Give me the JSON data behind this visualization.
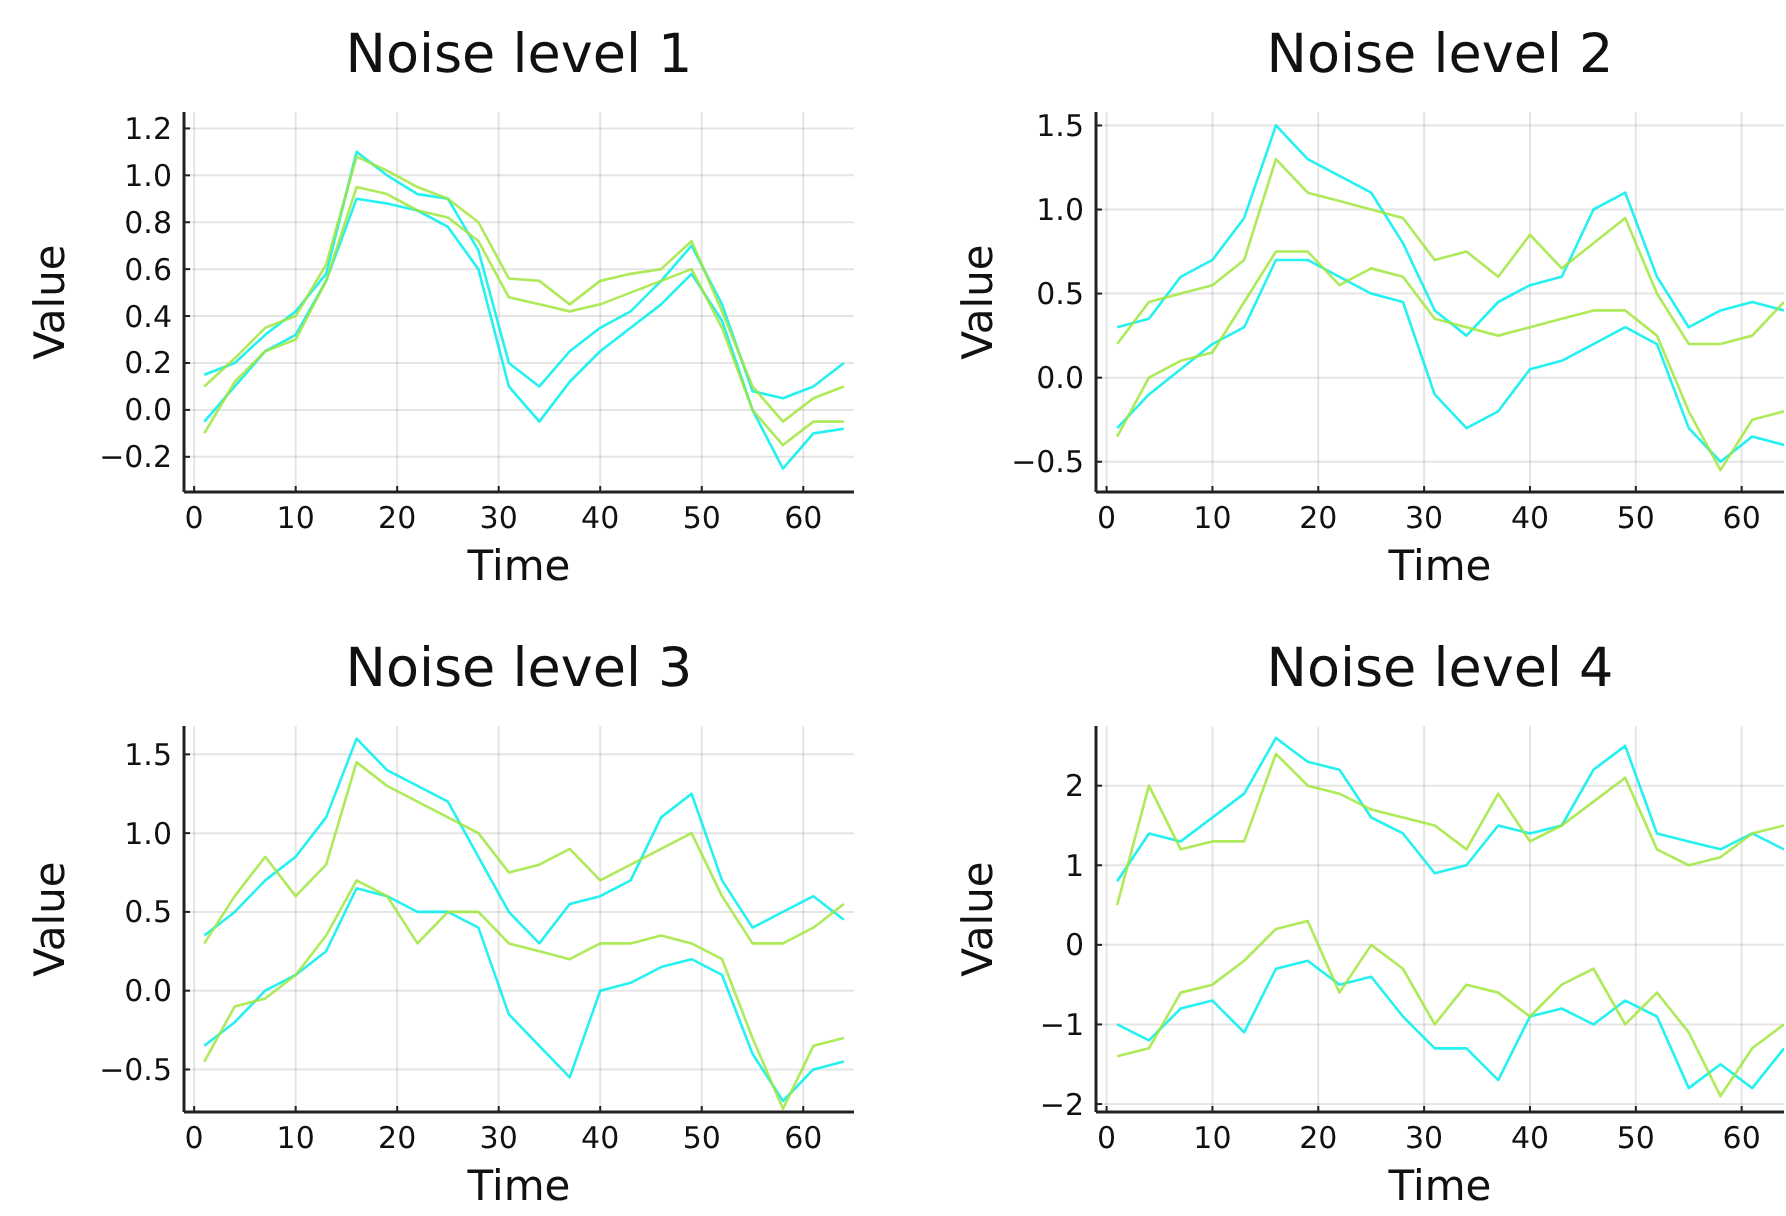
{
  "chart_data": [
    {
      "type": "line",
      "title": "Noise level 1",
      "xlabel": "Time",
      "ylabel": "Value",
      "x": [
        1,
        4,
        7,
        10,
        13,
        16,
        19,
        22,
        25,
        28,
        31,
        34,
        37,
        40,
        43,
        46,
        49,
        52,
        55,
        58,
        61,
        64
      ],
      "xlim": [
        -1,
        65
      ],
      "xticks": [
        0,
        10,
        20,
        30,
        40,
        50,
        60
      ],
      "ylim": [
        -0.35,
        1.27
      ],
      "yticks": [
        {
          "value": -0.2,
          "label": "−0.2"
        },
        {
          "value": 0,
          "label": "0.0"
        },
        0.2,
        0.4,
        0.6,
        0.8,
        {
          "value": 1,
          "label": "1.0"
        },
        1.2
      ],
      "grid": true,
      "series": [
        {
          "color": "#00eeee",
          "values": [
            0.15,
            0.2,
            0.32,
            0.42,
            0.58,
            1.1,
            1.0,
            0.92,
            0.9,
            0.68,
            0.2,
            0.1,
            0.25,
            0.35,
            0.42,
            0.55,
            0.7,
            0.45,
            0.08,
            0.05,
            0.1,
            0.2
          ]
        },
        {
          "color": "#00eeee",
          "values": [
            -0.05,
            0.1,
            0.25,
            0.32,
            0.55,
            0.9,
            0.88,
            0.85,
            0.78,
            0.6,
            0.1,
            -0.05,
            0.12,
            0.25,
            0.35,
            0.45,
            0.58,
            0.38,
            0.0,
            -0.25,
            -0.1,
            -0.08
          ]
        },
        {
          "color": "#a0e63c",
          "values": [
            0.1,
            0.22,
            0.35,
            0.4,
            0.62,
            1.08,
            1.02,
            0.95,
            0.9,
            0.8,
            0.56,
            0.55,
            0.45,
            0.55,
            0.58,
            0.6,
            0.72,
            0.42,
            0.1,
            -0.05,
            0.05,
            0.1
          ]
        },
        {
          "color": "#a0e63c",
          "values": [
            -0.1,
            0.12,
            0.25,
            0.3,
            0.55,
            0.95,
            0.92,
            0.85,
            0.82,
            0.72,
            0.48,
            0.45,
            0.42,
            0.45,
            0.5,
            0.55,
            0.6,
            0.35,
            0.0,
            -0.15,
            -0.05,
            -0.05
          ]
        }
      ]
    },
    {
      "type": "line",
      "title": "Noise level 2",
      "xlabel": "Time",
      "ylabel": "Value",
      "x": [
        1,
        4,
        7,
        10,
        13,
        16,
        19,
        22,
        25,
        28,
        31,
        34,
        37,
        40,
        43,
        46,
        49,
        52,
        55,
        58,
        61,
        64
      ],
      "xlim": [
        -1,
        64
      ],
      "xticks": [
        0,
        10,
        20,
        30,
        40,
        50,
        60
      ],
      "ylim": [
        -0.68,
        1.58
      ],
      "yticks": [
        {
          "value": -0.5,
          "label": "−0.5"
        },
        {
          "value": 0,
          "label": "0.0"
        },
        0.5,
        {
          "value": 1,
          "label": "1.0"
        },
        1.5
      ],
      "grid": true,
      "series": [
        {
          "color": "#00eeee",
          "values": [
            0.3,
            0.35,
            0.6,
            0.7,
            0.95,
            1.5,
            1.3,
            1.2,
            1.1,
            0.8,
            0.4,
            0.25,
            0.45,
            0.55,
            0.6,
            1.0,
            1.1,
            0.6,
            0.3,
            0.4,
            0.45,
            0.4
          ]
        },
        {
          "color": "#00eeee",
          "values": [
            -0.3,
            -0.1,
            0.05,
            0.2,
            0.3,
            0.7,
            0.7,
            0.6,
            0.5,
            0.45,
            -0.1,
            -0.3,
            -0.2,
            0.05,
            0.1,
            0.2,
            0.3,
            0.2,
            -0.3,
            -0.5,
            -0.35,
            -0.4
          ]
        },
        {
          "color": "#a0e63c",
          "values": [
            0.2,
            0.45,
            0.5,
            0.55,
            0.7,
            1.3,
            1.1,
            1.05,
            1.0,
            0.95,
            0.7,
            0.75,
            0.6,
            0.85,
            0.65,
            0.8,
            0.95,
            0.5,
            0.2,
            0.2,
            0.25,
            0.45
          ]
        },
        {
          "color": "#a0e63c",
          "values": [
            -0.35,
            0.0,
            0.1,
            0.15,
            0.45,
            0.75,
            0.75,
            0.55,
            0.65,
            0.6,
            0.35,
            0.3,
            0.25,
            0.3,
            0.35,
            0.4,
            0.4,
            0.25,
            -0.2,
            -0.55,
            -0.25,
            -0.2
          ]
        }
      ]
    },
    {
      "type": "line",
      "title": "Noise level 3",
      "xlabel": "Time",
      "ylabel": "Value",
      "x": [
        1,
        4,
        7,
        10,
        13,
        16,
        19,
        22,
        25,
        28,
        31,
        34,
        37,
        40,
        43,
        46,
        49,
        52,
        55,
        58,
        61,
        64
      ],
      "xlim": [
        -1,
        65
      ],
      "xticks": [
        0,
        10,
        20,
        30,
        40,
        50,
        60
      ],
      "ylim": [
        -0.77,
        1.68
      ],
      "yticks": [
        {
          "value": -0.5,
          "label": "−0.5"
        },
        {
          "value": 0,
          "label": "0.0"
        },
        0.5,
        {
          "value": 1,
          "label": "1.0"
        },
        1.5
      ],
      "grid": true,
      "series": [
        {
          "color": "#00eeee",
          "values": [
            0.35,
            0.5,
            0.7,
            0.85,
            1.1,
            1.6,
            1.4,
            1.3,
            1.2,
            0.85,
            0.5,
            0.3,
            0.55,
            0.6,
            0.7,
            1.1,
            1.25,
            0.7,
            0.4,
            0.5,
            0.6,
            0.45
          ]
        },
        {
          "color": "#00eeee",
          "values": [
            -0.35,
            -0.2,
            0.0,
            0.1,
            0.25,
            0.65,
            0.6,
            0.5,
            0.5,
            0.4,
            -0.15,
            -0.35,
            -0.55,
            0.0,
            0.05,
            0.15,
            0.2,
            0.1,
            -0.4,
            -0.7,
            -0.5,
            -0.45
          ]
        },
        {
          "color": "#a0e63c",
          "values": [
            0.3,
            0.6,
            0.85,
            0.6,
            0.8,
            1.45,
            1.3,
            1.2,
            1.1,
            1.0,
            0.75,
            0.8,
            0.9,
            0.7,
            0.8,
            0.9,
            1.0,
            0.6,
            0.3,
            0.3,
            0.4,
            0.55
          ]
        },
        {
          "color": "#a0e63c",
          "values": [
            -0.45,
            -0.1,
            -0.05,
            0.1,
            0.35,
            0.7,
            0.6,
            0.3,
            0.5,
            0.5,
            0.3,
            0.25,
            0.2,
            0.3,
            0.3,
            0.35,
            0.3,
            0.2,
            -0.3,
            -0.75,
            -0.35,
            -0.3
          ]
        }
      ]
    },
    {
      "type": "line",
      "title": "Noise level 4",
      "xlabel": "Time",
      "ylabel": "Value",
      "x": [
        1,
        4,
        7,
        10,
        13,
        16,
        19,
        22,
        25,
        28,
        31,
        34,
        37,
        40,
        43,
        46,
        49,
        52,
        55,
        58,
        61,
        64
      ],
      "xlim": [
        -1,
        64
      ],
      "xticks": [
        0,
        10,
        20,
        30,
        40,
        50,
        60
      ],
      "ylim": [
        -2.1,
        2.75
      ],
      "yticks": [
        {
          "value": -2,
          "label": "−2"
        },
        {
          "value": -1,
          "label": "−1"
        },
        0,
        1,
        2
      ],
      "grid": true,
      "series": [
        {
          "color": "#00eeee",
          "values": [
            0.8,
            1.4,
            1.3,
            1.6,
            1.9,
            2.6,
            2.3,
            2.2,
            1.6,
            1.4,
            0.9,
            1.0,
            1.5,
            1.4,
            1.5,
            2.2,
            2.5,
            1.4,
            1.3,
            1.2,
            1.4,
            1.2
          ]
        },
        {
          "color": "#00eeee",
          "values": [
            -1.0,
            -1.2,
            -0.8,
            -0.7,
            -1.1,
            -0.3,
            -0.2,
            -0.5,
            -0.4,
            -0.9,
            -1.3,
            -1.3,
            -1.7,
            -0.9,
            -0.8,
            -1.0,
            -0.7,
            -0.9,
            -1.8,
            -1.5,
            -1.8,
            -1.3
          ]
        },
        {
          "color": "#a0e63c",
          "values": [
            0.5,
            2.0,
            1.2,
            1.3,
            1.3,
            2.4,
            2.0,
            1.9,
            1.7,
            1.6,
            1.5,
            1.2,
            1.9,
            1.3,
            1.5,
            1.8,
            2.1,
            1.2,
            1.0,
            1.1,
            1.4,
            1.5
          ]
        },
        {
          "color": "#a0e63c",
          "values": [
            -1.4,
            -1.3,
            -0.6,
            -0.5,
            -0.2,
            0.2,
            0.3,
            -0.6,
            0.0,
            -0.3,
            -1.0,
            -0.5,
            -0.6,
            -0.9,
            -0.5,
            -0.3,
            -1.0,
            -0.6,
            -1.1,
            -1.9,
            -1.3,
            -1.0
          ]
        }
      ]
    }
  ]
}
